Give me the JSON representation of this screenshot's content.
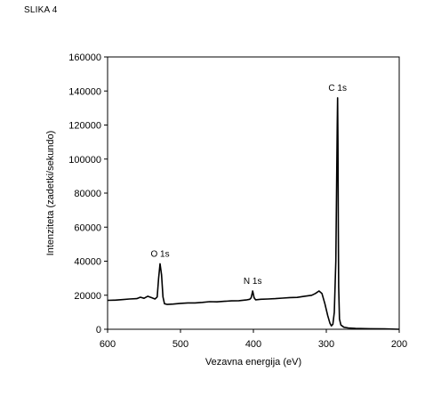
{
  "figure": {
    "label": "SLIKA 4"
  },
  "chart_data": {
    "type": "line",
    "xlabel": "Vezavna energija (eV)",
    "ylabel": "Intenziteta (zadetki/sekundo)",
    "xlim": [
      600,
      200
    ],
    "ylim": [
      0,
      160000
    ],
    "x_reversed": true,
    "xticks": [
      600,
      500,
      400,
      300,
      200
    ],
    "yticks": [
      0,
      20000,
      40000,
      60000,
      80000,
      100000,
      120000,
      140000,
      160000
    ],
    "grid": false,
    "series": [
      {
        "points": [
          [
            600,
            17000
          ],
          [
            590,
            17100
          ],
          [
            580,
            17400
          ],
          [
            570,
            17800
          ],
          [
            560,
            18000
          ],
          [
            555,
            18800
          ],
          [
            550,
            18200
          ],
          [
            545,
            19400
          ],
          [
            540,
            18600
          ],
          [
            535,
            17800
          ],
          [
            532,
            19000
          ],
          [
            530,
            30000
          ],
          [
            528,
            38500
          ],
          [
            526,
            32000
          ],
          [
            524,
            19000
          ],
          [
            522,
            15000
          ],
          [
            518,
            14600
          ],
          [
            510,
            14800
          ],
          [
            500,
            15200
          ],
          [
            490,
            15500
          ],
          [
            480,
            15500
          ],
          [
            470,
            15800
          ],
          [
            460,
            16200
          ],
          [
            450,
            16100
          ],
          [
            440,
            16400
          ],
          [
            430,
            16700
          ],
          [
            420,
            16800
          ],
          [
            410,
            17200
          ],
          [
            405,
            17600
          ],
          [
            403,
            18500
          ],
          [
            401,
            22500
          ],
          [
            399,
            18500
          ],
          [
            397,
            17300
          ],
          [
            390,
            17600
          ],
          [
            380,
            17800
          ],
          [
            370,
            18000
          ],
          [
            360,
            18300
          ],
          [
            350,
            18600
          ],
          [
            340,
            18700
          ],
          [
            330,
            19400
          ],
          [
            320,
            20000
          ],
          [
            315,
            21000
          ],
          [
            310,
            22500
          ],
          [
            306,
            21000
          ],
          [
            302,
            15000
          ],
          [
            298,
            8000
          ],
          [
            295,
            3500
          ],
          [
            293,
            2000
          ],
          [
            291,
            3000
          ],
          [
            289,
            10000
          ],
          [
            287,
            40000
          ],
          [
            286,
            80000
          ],
          [
            285,
            120000
          ],
          [
            284.5,
            136000
          ],
          [
            284,
            110000
          ],
          [
            283.5,
            60000
          ],
          [
            283,
            25000
          ],
          [
            282,
            6000
          ],
          [
            280,
            2500
          ],
          [
            276,
            1200
          ],
          [
            270,
            800
          ],
          [
            260,
            500
          ],
          [
            240,
            300
          ],
          [
            220,
            200
          ],
          [
            200,
            0
          ]
        ]
      }
    ],
    "annotations": [
      {
        "text": "O 1s",
        "x": 528,
        "y": 38500
      },
      {
        "text": "N 1s",
        "x": 401,
        "y": 22500
      },
      {
        "text": "C 1s",
        "x": 284.5,
        "y": 136000
      }
    ]
  }
}
